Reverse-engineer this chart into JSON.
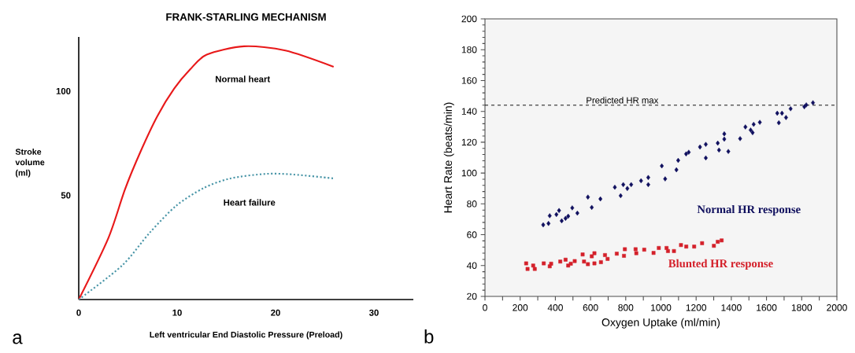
{
  "chart_data": [
    {
      "type": "line",
      "title": "FRANK-STARLING MECHANISM",
      "xlabel": "Left ventricular End Diastolic Pressure (Preload)",
      "ylabel": "Stroke volume (ml)",
      "legend": false,
      "xlim": [
        0,
        34
      ],
      "ylim": [
        0,
        126
      ],
      "xticks": [
        0,
        10,
        20,
        30
      ],
      "yticks": [
        50,
        100
      ],
      "series": [
        {
          "name": "Normal heart",
          "color": "#e8191a",
          "line_style": "solid",
          "x": [
            0,
            3.0,
            4.7,
            6.3,
            8.0,
            9.7,
            11.3,
            13.0,
            16.8,
            21.0,
            25.9
          ],
          "values": [
            0,
            29.4,
            52.9,
            71.2,
            88.1,
            101.2,
            110.3,
            117.5,
            121.5,
            119.5,
            111.7
          ]
        },
        {
          "name": "Heart failure",
          "color": "#4a96a8",
          "line_style": "dotted",
          "x": [
            0,
            4.4,
            7.2,
            9.9,
            12.7,
            15.4,
            19.0,
            21.8,
            25.9
          ],
          "values": [
            0,
            16.3,
            32.0,
            45.0,
            53.5,
            58.1,
            60.3,
            60.0,
            58.1
          ]
        }
      ],
      "annotations": [
        "a"
      ]
    },
    {
      "type": "scatter",
      "xlabel": "Oxygen Uptake (ml/min)",
      "ylabel": "Heart Rate (beats/min)",
      "legend": false,
      "xlim": [
        0,
        2000
      ],
      "ylim": [
        20,
        200
      ],
      "xticks": [
        0,
        {
          "value": 100,
          "label": null
        },
        200,
        {
          "value": 300,
          "label": null
        },
        400,
        {
          "value": 500,
          "label": null
        },
        600,
        {
          "value": 700,
          "label": null
        },
        800,
        {
          "value": 900,
          "label": null
        },
        1000,
        {
          "value": 1100,
          "label": null
        },
        1200,
        {
          "value": 1300,
          "label": null
        },
        1400,
        {
          "value": 1500,
          "label": null
        },
        1600,
        {
          "value": 1700,
          "label": null
        },
        1800,
        {
          "value": 1900,
          "label": null
        },
        2000
      ],
      "yticks": [
        20,
        40,
        60,
        80,
        100,
        120,
        140,
        160,
        180,
        200
      ],
      "series": [
        {
          "name": "Normal HR response",
          "color": "#10105e",
          "marker": "diamond",
          "x": [
            331,
            361,
            368,
            406,
            421,
            436,
            458,
            473,
            496,
            525,
            585,
            607,
            656,
            738,
            771,
            786,
            809,
            831,
            887,
            928,
            928,
            1005,
            1024,
            1088,
            1098,
            1143,
            1158,
            1222,
            1255,
            1255,
            1323,
            1330,
            1360,
            1360,
            1383,
            1450,
            1480,
            1510,
            1521,
            1527,
            1562,
            1661,
            1688,
            1670,
            1711,
            1737,
            1815,
            1826,
            1864
          ],
          "values": [
            66.4,
            67.3,
            72.3,
            73.1,
            75.7,
            69,
            70.6,
            72,
            77.4,
            74,
            84.4,
            77.7,
            83.2,
            90.8,
            85.3,
            92.5,
            90,
            92.5,
            95,
            97.1,
            92.5,
            104.6,
            96.2,
            102.1,
            108.2,
            112.4,
            113.5,
            116.9,
            118.6,
            109.8,
            119.4,
            114.9,
            125.4,
            122,
            114,
            122.3,
            129.9,
            127.9,
            126.2,
            131.6,
            132.9,
            138.8,
            138.8,
            132.6,
            136,
            141.7,
            143,
            144.2,
            145.6
          ]
        },
        {
          "name": "Blunted HR response",
          "color": "#d4202a",
          "marker": "square",
          "x": [
            234,
            242,
            274,
            283,
            334,
            368,
            376,
            428,
            458,
            473,
            488,
            510,
            555,
            563,
            585,
            607,
            622,
            622,
            659,
            682,
            697,
            749,
            790,
            795,
            856,
            860,
            905,
            958,
            988,
            1032,
            1040,
            1074,
            1114,
            1144,
            1189,
            1234,
            1301,
            1323,
            1345
          ],
          "values": [
            41.4,
            37.8,
            40,
            37.8,
            41.4,
            39.5,
            41.2,
            42.6,
            43.8,
            40,
            41.2,
            42.9,
            47.2,
            42.6,
            40.9,
            46,
            48,
            41.4,
            42.2,
            46.8,
            44.3,
            47.7,
            46.3,
            50.6,
            50.6,
            48,
            50.3,
            48.2,
            51.4,
            51.4,
            49.4,
            49.4,
            53.3,
            52.3,
            52.3,
            54.5,
            52.8,
            55.4,
            56.3
          ]
        }
      ],
      "ref_lines": [
        {
          "axis": "y",
          "value": 144,
          "label": "Predicted HR max",
          "line_style": "dashed",
          "color": "#000000"
        }
      ],
      "annotations": [
        "b"
      ]
    }
  ]
}
